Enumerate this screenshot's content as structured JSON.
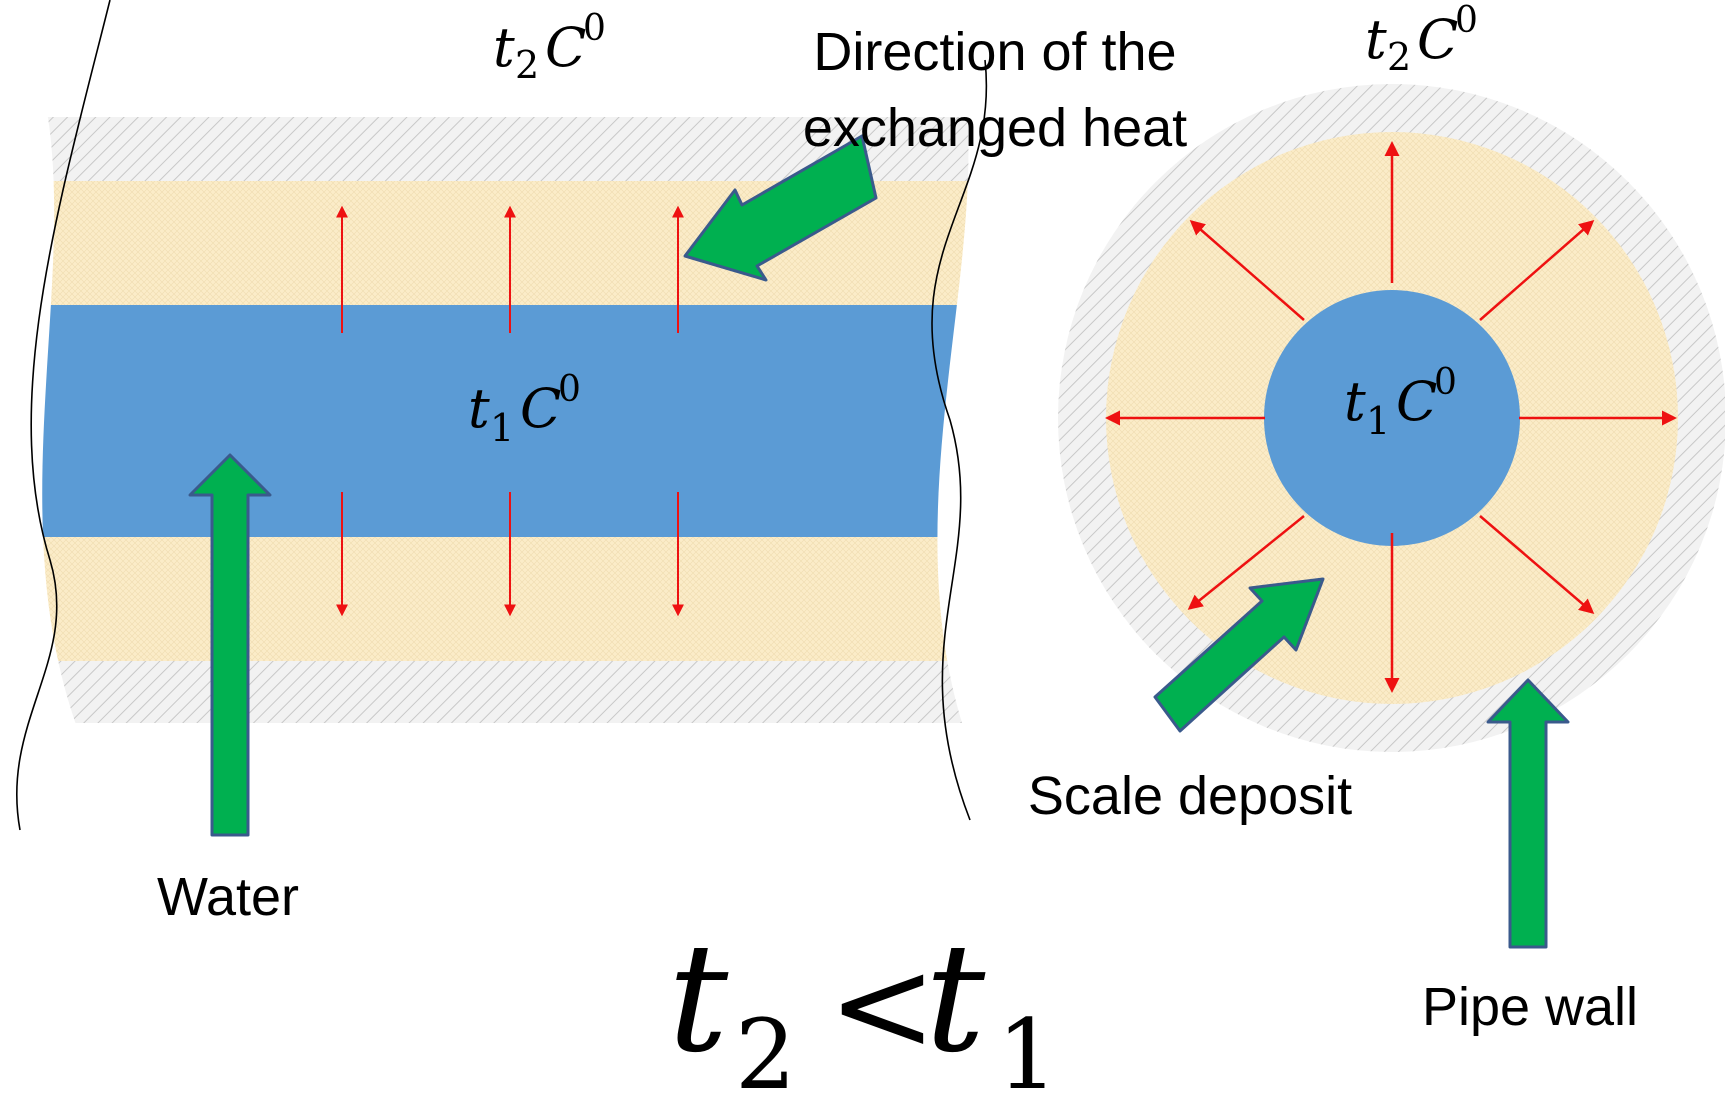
{
  "colors": {
    "water": "#5b9bd5",
    "scale": "#fbecc8",
    "wall_fill": "#f2f2f2",
    "wall_hatch": "#c8c8c8",
    "heat_arrow": "#ee1111",
    "pointer_arrow": "#00b050",
    "pointer_outline": "#3a5a8c"
  },
  "icons": {
    "pointer": "green-block-arrow-icon",
    "heat": "red-arrow-icon"
  },
  "labels": {
    "heat_direction_line1": "Direction of the",
    "heat_direction_line2": "exchanged heat",
    "water": "Water",
    "scale_deposit": "Scale deposit",
    "pipe_wall": "Pipe wall"
  },
  "math": {
    "outer_temp": {
      "var": "t",
      "sub": "2",
      "unit": "C",
      "sup": "0"
    },
    "inner_temp": {
      "var": "t",
      "sub": "1",
      "unit": "C",
      "sup": "0"
    },
    "relation": {
      "left": "t",
      "left_sub": "2",
      "op": "<",
      "right": "t",
      "right_sub": "1"
    }
  }
}
